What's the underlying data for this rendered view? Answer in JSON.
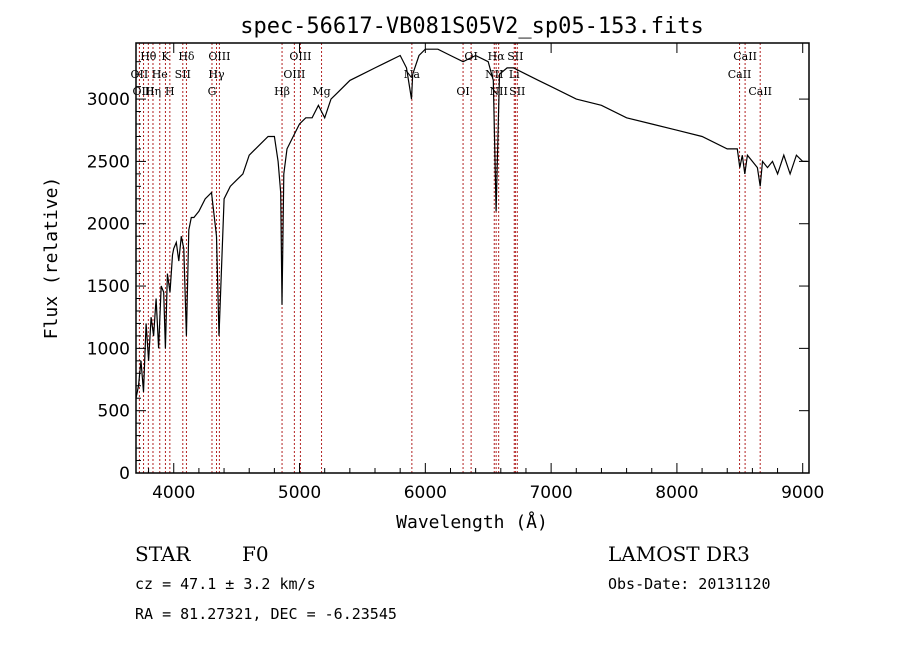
{
  "chart_data": {
    "type": "line",
    "title": "spec-56617-VB081S05V2_sp05-153.fits",
    "xlabel": "Wavelength (Å)",
    "ylabel": "Flux (relative)",
    "xlim": [
      3700,
      9050
    ],
    "ylim": [
      0,
      3450
    ],
    "xticks": [
      4000,
      5000,
      6000,
      7000,
      8000,
      9000
    ],
    "yticks": [
      0,
      500,
      1000,
      1500,
      2000,
      2500,
      3000
    ],
    "series": [
      {
        "name": "spectrum",
        "x": [
          3700,
          3720,
          3740,
          3760,
          3780,
          3800,
          3820,
          3840,
          3860,
          3880,
          3900,
          3920,
          3934,
          3950,
          3970,
          3990,
          4000,
          4020,
          4040,
          4060,
          4080,
          4101,
          4120,
          4140,
          4160,
          4200,
          4250,
          4300,
          4340,
          4360,
          4400,
          4450,
          4500,
          4550,
          4600,
          4650,
          4700,
          4750,
          4800,
          4830,
          4850,
          4861,
          4875,
          4900,
          4950,
          5000,
          5050,
          5100,
          5150,
          5200,
          5250,
          5300,
          5400,
          5500,
          5600,
          5700,
          5800,
          5850,
          5890,
          5900,
          5950,
          6000,
          6100,
          6200,
          6300,
          6400,
          6500,
          6540,
          6563,
          6590,
          6650,
          6700,
          6800,
          6900,
          7000,
          7200,
          7400,
          7600,
          7800,
          8000,
          8200,
          8400,
          8480,
          8500,
          8520,
          8540,
          8560,
          8600,
          8640,
          8662,
          8680,
          8720,
          8760,
          8800,
          8850,
          8900,
          8950,
          9000,
          9040
        ],
        "values": [
          600,
          700,
          900,
          650,
          1200,
          900,
          1250,
          1100,
          1400,
          1000,
          1500,
          1450,
          1000,
          1600,
          1450,
          1750,
          1800,
          1850,
          1700,
          1900,
          1800,
          1100,
          1950,
          2050,
          2050,
          2100,
          2200,
          2250,
          1900,
          1100,
          2200,
          2300,
          2350,
          2400,
          2550,
          2600,
          2650,
          2700,
          2700,
          2500,
          2250,
          1350,
          2400,
          2600,
          2700,
          2800,
          2850,
          2850,
          2950,
          2850,
          3000,
          3050,
          3150,
          3200,
          3250,
          3300,
          3350,
          3250,
          3000,
          3200,
          3350,
          3400,
          3400,
          3350,
          3300,
          3350,
          3300,
          3150,
          2100,
          3200,
          3250,
          3250,
          3200,
          3150,
          3100,
          3000,
          2950,
          2850,
          2800,
          2750,
          2700,
          2600,
          2600,
          2450,
          2550,
          2400,
          2550,
          2500,
          2450,
          2300,
          2500,
          2450,
          2500,
          2400,
          2550,
          2400,
          2550,
          2500,
          2500
        ]
      }
    ],
    "lines": [
      {
        "name": "Hθ",
        "wavelength": 3798,
        "row": 0
      },
      {
        "name": "OII",
        "wavelength": 3727,
        "row": 1
      },
      {
        "name": "OIII",
        "wavelength": 3760,
        "row": 2
      },
      {
        "name": "He",
        "wavelength": 3889,
        "row": 1
      },
      {
        "name": "Hη",
        "wavelength": 3835,
        "row": 2
      },
      {
        "name": "K",
        "wavelength": 3934,
        "row": 0
      },
      {
        "name": "H",
        "wavelength": 3969,
        "row": 2
      },
      {
        "name": "SII",
        "wavelength": 4072,
        "row": 1
      },
      {
        "name": "Hδ",
        "wavelength": 4101,
        "row": 0
      },
      {
        "name": "OIII",
        "wavelength": 4363,
        "row": 0
      },
      {
        "name": "Hγ",
        "wavelength": 4340,
        "row": 1
      },
      {
        "name": "G",
        "wavelength": 4304,
        "row": 2
      },
      {
        "name": "Hβ",
        "wavelength": 4861,
        "row": 2
      },
      {
        "name": "OIII",
        "wavelength": 5007,
        "row": 0
      },
      {
        "name": "OIII",
        "wavelength": 4959,
        "row": 1
      },
      {
        "name": "Mg",
        "wavelength": 5175,
        "row": 2
      },
      {
        "name": "Na",
        "wavelength": 5893,
        "row": 1
      },
      {
        "name": "OI",
        "wavelength": 6300,
        "row": 2
      },
      {
        "name": "OI",
        "wavelength": 6364,
        "row": 0
      },
      {
        "name": "Hα",
        "wavelength": 6563,
        "row": 0
      },
      {
        "name": "NII",
        "wavelength": 6548,
        "row": 1
      },
      {
        "name": "NII",
        "wavelength": 6583,
        "row": 2
      },
      {
        "name": "SII",
        "wavelength": 6716,
        "row": 0
      },
      {
        "name": "Li",
        "wavelength": 6707,
        "row": 1
      },
      {
        "name": "SII",
        "wavelength": 6731,
        "row": 2
      },
      {
        "name": "CaII",
        "wavelength": 8542,
        "row": 0
      },
      {
        "name": "CaII",
        "wavelength": 8498,
        "row": 1
      },
      {
        "name": "CaII",
        "wavelength": 8662,
        "row": 2
      }
    ]
  },
  "info": {
    "class": "STAR",
    "subclass": "F0",
    "survey": "LAMOST DR3",
    "cz": "cz = 47.1 ± 3.2 km/s",
    "obs_date": "Obs-Date: 20131120",
    "coords": "RA =  81.27321, DEC =  -6.23545"
  },
  "colors": {
    "spectrum": "#000000",
    "line_markers": "#b22222",
    "axes": "#000000"
  }
}
